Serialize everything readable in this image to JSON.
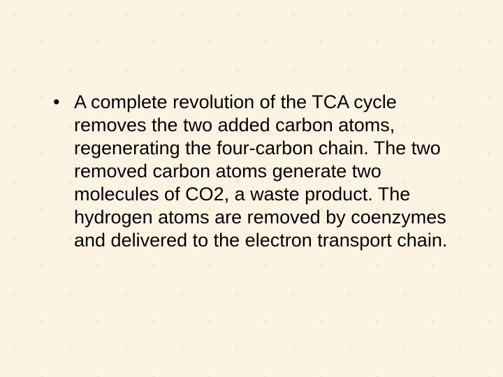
{
  "slide": {
    "background_color": "#fdf3e3",
    "pattern_color": "#f7dcb9",
    "text_color": "#000000",
    "font_family": "Arial",
    "body_fontsize_pt": 20,
    "body_line_height": 1.22,
    "bullets": [
      {
        "text": "A complete revolution of the TCA cycle removes the two added carbon atoms, regenerating the four-carbon chain.  The two removed carbon atoms generate two molecules of CO2, a waste product.  The hydrogen atoms are removed by coenzymes and delivered to the electron transport chain."
      }
    ]
  }
}
